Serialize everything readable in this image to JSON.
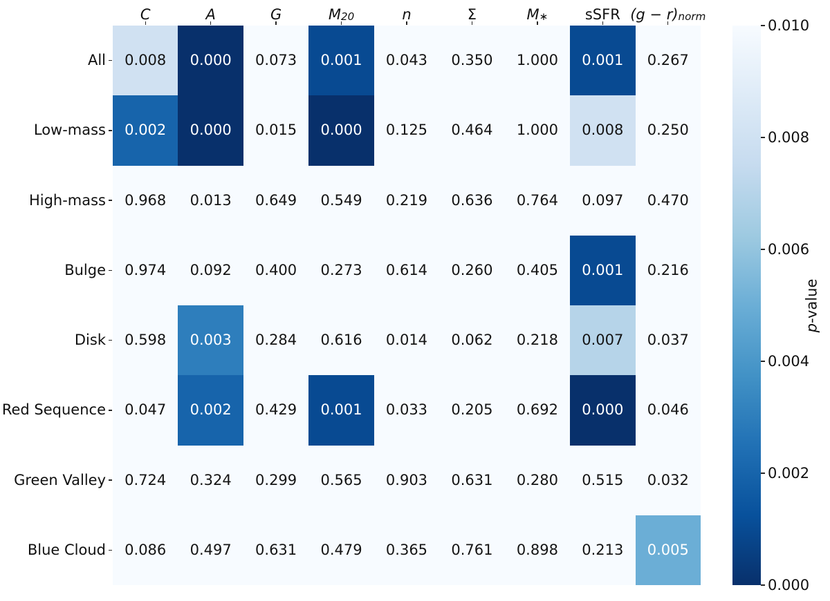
{
  "chart_data": {
    "type": "heatmap",
    "title": "",
    "xlabel": "",
    "ylabel_italic_part": "p",
    "ylabel_rest": "-value",
    "vmin": 0.0,
    "vmax": 0.01,
    "color_rule": "cell shaded with reversed Blues colormap only when value <= 0.010; darker = smaller p-value; cells above threshold left on background",
    "columns": [
      {
        "label": "C",
        "sub": "",
        "italic": true
      },
      {
        "label": "A",
        "sub": "",
        "italic": true
      },
      {
        "label": "G",
        "sub": "",
        "italic": true
      },
      {
        "label": "M",
        "sub": "20",
        "italic": true
      },
      {
        "label": "n",
        "sub": "",
        "italic": true
      },
      {
        "label": "Σ",
        "sub": "",
        "italic": false
      },
      {
        "label": "M",
        "sub": "∗",
        "italic": true
      },
      {
        "label": "sSFR",
        "sub": "",
        "italic": false
      },
      {
        "label": "(g − r)",
        "sub": "norm",
        "italic": true
      }
    ],
    "rows": [
      "All",
      "Low-mass",
      "High-mass",
      "Bulge",
      "Disk",
      "Red Sequence",
      "Green Valley",
      "Blue Cloud"
    ],
    "values": [
      [
        0.008,
        0.0,
        0.073,
        0.001,
        0.043,
        0.35,
        1.0,
        0.001,
        0.267
      ],
      [
        0.002,
        0.0,
        0.015,
        0.0,
        0.125,
        0.464,
        1.0,
        0.008,
        0.25
      ],
      [
        0.968,
        0.013,
        0.649,
        0.549,
        0.219,
        0.636,
        0.764,
        0.097,
        0.47
      ],
      [
        0.974,
        0.092,
        0.4,
        0.273,
        0.614,
        0.26,
        0.405,
        0.001,
        0.216
      ],
      [
        0.598,
        0.003,
        0.284,
        0.616,
        0.014,
        0.062,
        0.218,
        0.007,
        0.037
      ],
      [
        0.047,
        0.002,
        0.429,
        0.001,
        0.033,
        0.205,
        0.692,
        0.0,
        0.046
      ],
      [
        0.724,
        0.324,
        0.299,
        0.565,
        0.903,
        0.631,
        0.28,
        0.515,
        0.032
      ],
      [
        0.086,
        0.497,
        0.631,
        0.479,
        0.365,
        0.761,
        0.898,
        0.213,
        0.005
      ]
    ],
    "value_format_decimals": 3,
    "colorbar": {
      "tick_labels": [
        "0.010",
        "0.008",
        "0.006",
        "0.004",
        "0.002",
        "0.000"
      ],
      "position": "right"
    },
    "colors": {
      "blues_scale_light_to_dark": [
        "#f7fbff",
        "#deebf7",
        "#c6dbef",
        "#9ecae1",
        "#6baed6",
        "#4292c6",
        "#2171b5",
        "#08519c",
        "#08306b"
      ],
      "plot_background": "#f7fbff",
      "annotation_dark": "#151515",
      "annotation_light": "#ffffff",
      "tick_color": "#262626"
    },
    "legend_position": "none",
    "grid": false
  }
}
